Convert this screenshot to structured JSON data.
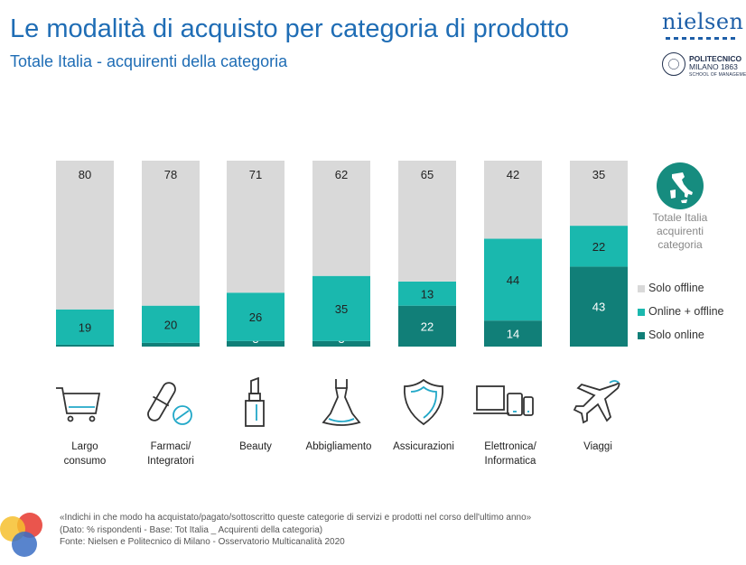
{
  "header": {
    "title": "Le modalità di acquisto per categoria di prodotto",
    "subtitle": "Totale Italia - acquirenti della categoria"
  },
  "logos": {
    "nielsen": "nielsen",
    "polimi_name": "POLITECNICO",
    "polimi_city": "MILANO 1863",
    "polimi_school": "SCHOOL OF MANAGEMENT"
  },
  "side": {
    "italy_label_1": "Totale Italia",
    "italy_label_2": "acquirenti",
    "italy_label_3": "categoria"
  },
  "legend": [
    {
      "label": "Solo offline",
      "color": "#d9d9d9"
    },
    {
      "label": "Online + offline",
      "color": "#1ab8ae"
    },
    {
      "label": "Solo online",
      "color": "#117f78"
    }
  ],
  "categories": [
    {
      "line1": "Largo",
      "line2": "consumo",
      "icon": "shopping-cart-icon"
    },
    {
      "line1": "Farmaci/",
      "line2": "Integratori",
      "icon": "pill-icon"
    },
    {
      "line1": "Beauty",
      "line2": "",
      "icon": "lipstick-icon"
    },
    {
      "line1": "Abbigliamento",
      "line2": "",
      "icon": "dress-icon"
    },
    {
      "line1": "Assicurazioni",
      "line2": "",
      "icon": "shield-icon"
    },
    {
      "line1": "Elettronica/",
      "line2": "Informatica",
      "icon": "devices-icon"
    },
    {
      "line1": "Viaggi",
      "line2": "",
      "icon": "airplane-icon"
    }
  ],
  "chart_data": {
    "type": "bar",
    "stacked": true,
    "categories": [
      "Largo consumo",
      "Farmaci/ Integratori",
      "Beauty",
      "Abbigliamento",
      "Assicurazioni",
      "Elettronica/ Informatica",
      "Viaggi"
    ],
    "series": [
      {
        "name": "Solo online",
        "color": "#117f78",
        "values": [
          1,
          2,
          3,
          3,
          22,
          14,
          43
        ]
      },
      {
        "name": "Online + offline",
        "color": "#1ab8ae",
        "values": [
          19,
          20,
          26,
          35,
          13,
          44,
          22
        ]
      },
      {
        "name": "Solo offline",
        "color": "#d9d9d9",
        "values": [
          80,
          78,
          71,
          62,
          65,
          42,
          35
        ]
      }
    ],
    "ylim": [
      0,
      100
    ],
    "grid": false,
    "legend_position": "right"
  },
  "footer": {
    "line1": "«Indichi in che modo ha acquistato/pagato/sottoscritto queste categorie di servizi e prodotti nel corso dell'ultimo anno»",
    "line2": "(Dato: % rispondenti - Base: Tot Italia _ Acquirenti della categoria)",
    "line3": "Fonte: Nielsen e Politecnico di Milano - Osservatorio Multicanalità 2020"
  }
}
